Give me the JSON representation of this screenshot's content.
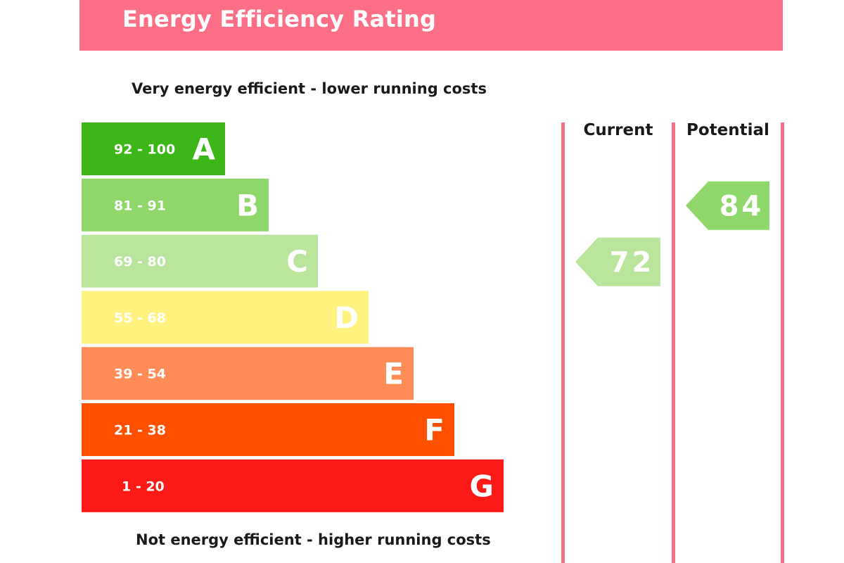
{
  "header": {
    "title": "Energy Efficiency Rating"
  },
  "captions": {
    "top": "Very energy efficient - lower running costs",
    "bottom": "Not energy efficient - higher running costs"
  },
  "columns": {
    "current_label": "Current",
    "potential_label": "Potential"
  },
  "chart_data": {
    "type": "bar",
    "bands": [
      {
        "letter": "A",
        "range": "92 - 100",
        "min": 92,
        "max": 100,
        "color": "#3db718"
      },
      {
        "letter": "B",
        "range": "81 - 91",
        "min": 81,
        "max": 91,
        "color": "#8fd76a"
      },
      {
        "letter": "C",
        "range": "69 - 80",
        "min": 69,
        "max": 80,
        "color": "#b9e59d"
      },
      {
        "letter": "D",
        "range": "55 - 68",
        "min": 55,
        "max": 68,
        "color": "#fff27e"
      },
      {
        "letter": "E",
        "range": "39 - 54",
        "min": 39,
        "max": 54,
        "color": "#ff8c57"
      },
      {
        "letter": "F",
        "range": "21 - 38",
        "min": 21,
        "max": 38,
        "color": "#ff5000"
      },
      {
        "letter": "G",
        "range": "1 - 20",
        "min": 1,
        "max": 20,
        "color": "#fb1a16"
      }
    ],
    "current": {
      "value": 72,
      "label": "72",
      "band": "C",
      "color": "#b9e59d"
    },
    "potential": {
      "value": 84,
      "label": "84",
      "band": "B",
      "color": "#8fd76a"
    }
  }
}
